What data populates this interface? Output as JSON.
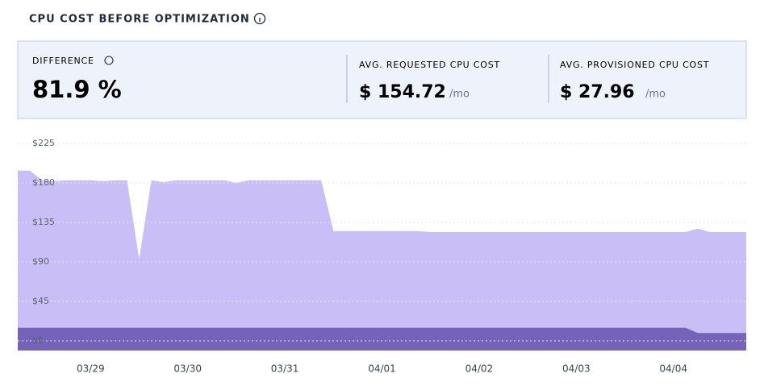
{
  "header": {
    "title": "CPU COST BEFORE OPTIMIZATION"
  },
  "stats": [
    {
      "label": "DIFFERENCE",
      "value": "81.9 %"
    },
    {
      "label": "AVG. REQUESTED CPU COST",
      "value": "$ 154.72",
      "unit": "/mo"
    },
    {
      "label": "AVG. PROVISIONED CPU COST",
      "value": "$ 27.96",
      "unit": "/mo"
    }
  ],
  "chart_data": {
    "type": "area",
    "categories": [
      null,
      null,
      null,
      null,
      null,
      null,
      "03/29",
      null,
      null,
      null,
      null,
      null,
      null,
      null,
      "03/30",
      null,
      null,
      null,
      null,
      null,
      null,
      null,
      "03/31",
      null,
      null,
      null,
      null,
      null,
      null,
      null,
      "04/01",
      null,
      null,
      null,
      null,
      null,
      null,
      null,
      "04/02",
      null,
      null,
      null,
      null,
      null,
      null,
      null,
      "04/03",
      null,
      null,
      null,
      null,
      null,
      null,
      null,
      "04/04",
      null,
      null,
      null,
      null,
      null,
      null
    ],
    "series": [
      {
        "name": "Requested",
        "color": "#c9bff6",
        "values": [
          194,
          194,
          183,
          182,
          183,
          183,
          183,
          182,
          183,
          183,
          93,
          183,
          181,
          183,
          183,
          183,
          183,
          183,
          180,
          183,
          183,
          183,
          183,
          183,
          183,
          183,
          125,
          125,
          125,
          125,
          125,
          125,
          125,
          125,
          124,
          124,
          124,
          124,
          124,
          124,
          124,
          124,
          124,
          124,
          124,
          124,
          124,
          124,
          124,
          124,
          124,
          124,
          124,
          124,
          124,
          124,
          128,
          124,
          124,
          124,
          124
        ]
      },
      {
        "name": "Provisioned",
        "color": "#7563b9",
        "values": [
          15,
          15,
          15,
          15,
          15,
          15,
          15,
          15,
          15,
          15,
          15,
          15,
          15,
          15,
          15,
          15,
          15,
          15,
          15,
          15,
          15,
          15,
          15,
          15,
          15,
          15,
          15,
          15,
          15,
          15,
          15,
          15,
          15,
          15,
          15,
          15,
          15,
          15,
          15,
          15,
          15,
          15,
          15,
          15,
          15,
          15,
          15,
          15,
          15,
          15,
          15,
          15,
          15,
          15,
          15,
          15,
          9,
          9,
          9,
          9,
          9
        ]
      }
    ],
    "ylim": [
      -11,
      230
    ],
    "yticks": [
      {
        "value": 0,
        "label": "$0"
      },
      {
        "value": 45,
        "label": "$45"
      },
      {
        "value": 90,
        "label": "$90"
      },
      {
        "value": 135,
        "label": "$135"
      },
      {
        "value": 180,
        "label": "$180"
      },
      {
        "value": 225,
        "label": "$225"
      }
    ],
    "grid": true
  }
}
